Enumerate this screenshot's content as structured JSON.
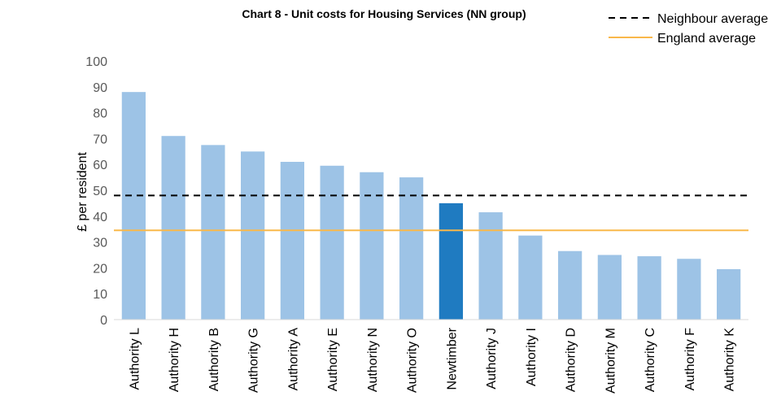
{
  "chart_data": {
    "type": "bar",
    "title": "Chart 8 - Unit costs for Housing Services (NN group)",
    "y_label": "£ per resident",
    "categories": [
      "Authority L",
      "Authority H",
      "Authority B",
      "Authority G",
      "Authority A",
      "Authority E",
      "Authority N",
      "Authority O",
      "Newtimber",
      "Authority J",
      "Authority I",
      "Authority D",
      "Authority M",
      "Authority C",
      "Authority F",
      "Authority K"
    ],
    "values": [
      88,
      71,
      67.5,
      65,
      61,
      59.5,
      57,
      55,
      45,
      41.5,
      32.5,
      26.5,
      25,
      24.5,
      23.5,
      19.5
    ],
    "colors": [
      "#9dc3e6",
      "#9dc3e6",
      "#9dc3e6",
      "#9dc3e6",
      "#9dc3e6",
      "#9dc3e6",
      "#9dc3e6",
      "#9dc3e6",
      "#1f7bc1",
      "#9dc3e6",
      "#9dc3e6",
      "#9dc3e6",
      "#9dc3e6",
      "#9dc3e6",
      "#9dc3e6",
      "#9dc3e6"
    ],
    "reference_lines": [
      {
        "name": "Neighbour average",
        "value": 48,
        "color": "#000000",
        "dashed": true
      },
      {
        "name": "England average",
        "value": 34.5,
        "color": "#f9b84a",
        "dashed": false
      }
    ],
    "ylim": [
      0,
      100
    ],
    "yticks": [
      0,
      10,
      20,
      30,
      40,
      50,
      60,
      70,
      80,
      90,
      100
    ],
    "grid": false,
    "legend": "top-right"
  }
}
